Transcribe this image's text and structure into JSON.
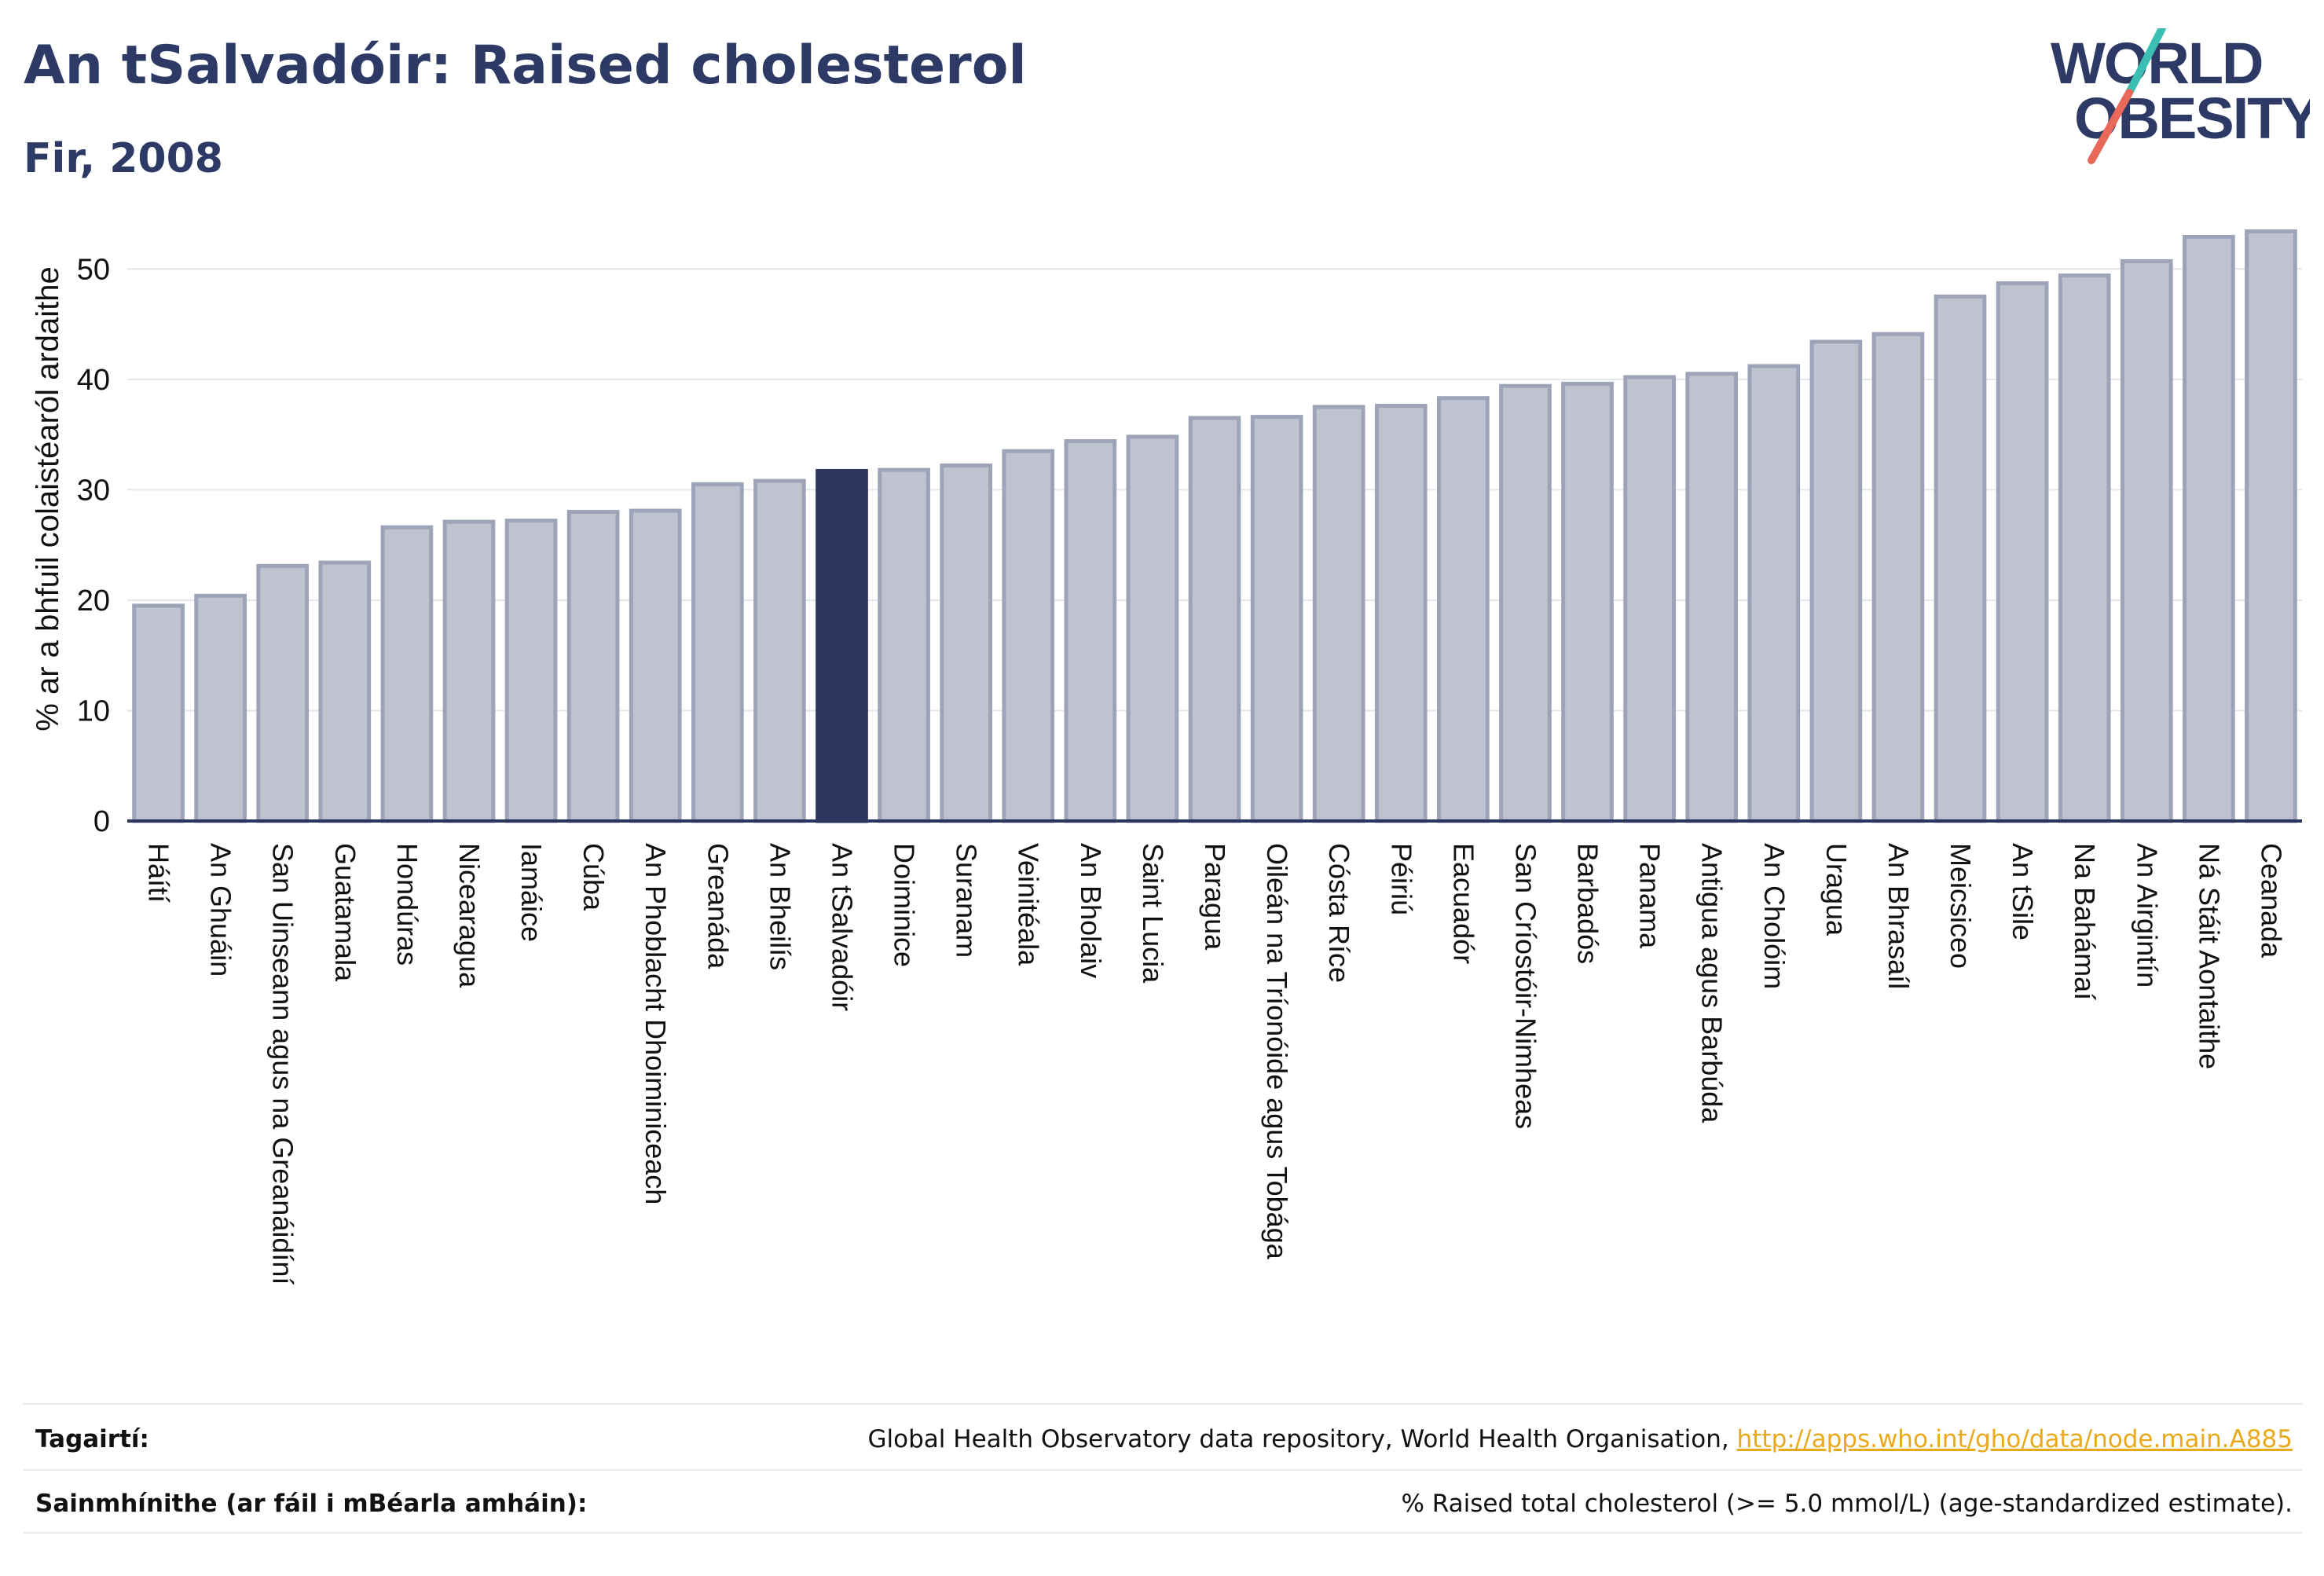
{
  "header": {
    "title": "An tSalvadóir: Raised cholesterol",
    "subtitle": "Fir, 2008",
    "logo_line1": "WORLD",
    "logo_line2": "OBESITY"
  },
  "colors": {
    "highlight": "#2b365e",
    "bar_fill": "#bfc3cf",
    "bar_stroke": "#9ea4b8",
    "text": "#2d3a66",
    "logo_teal": "#3bbfb3",
    "logo_coral": "#e8685a"
  },
  "chart_data": {
    "type": "bar",
    "title": "An tSalvadóir: Raised cholesterol",
    "subtitle": "Fir, 2008",
    "xlabel": "",
    "ylabel": "% ar a bhfuil colaistéaról ardaithe",
    "ylim": [
      0,
      55
    ],
    "yticks": [
      0,
      10,
      20,
      30,
      40,
      50
    ],
    "grid": true,
    "legend": "none",
    "highlight": "An tSalvadóir",
    "categories": [
      "Háítí",
      "An Ghuáin",
      "San Uinseann agus na Greanáidíní",
      "Guatamala",
      "Hondúras",
      "Nicearagua",
      "Iamáice",
      "Cúba",
      "An Phoblacht Dhoiminiceach",
      "Greanáda",
      "An Bheilís",
      "An tSalvadóir",
      "Doiminice",
      "Suranam",
      "Veinitéala",
      "An Bholaiv",
      "Saint Lucia",
      "Paragua",
      "Oileán na Tríonóide agus Tobága",
      "Cósta Ríce",
      "Péiriú",
      "Eacuadór",
      "San Críostóir-Nimheas",
      "Barbadós",
      "Panama",
      "Antigua agus Barbúda",
      "An Cholóim",
      "Uragua",
      "An Bhrasaíl",
      "Meicsiceo",
      "An tSile",
      "Na Bahámaí",
      "An Airgintín",
      "Ná Stáit Aontaithe",
      "Ceanada"
    ],
    "values": [
      19.5,
      20.4,
      23.1,
      23.4,
      26.6,
      27.1,
      27.2,
      28.0,
      28.1,
      30.5,
      30.8,
      31.7,
      31.8,
      32.2,
      33.5,
      34.4,
      34.8,
      36.5,
      36.6,
      37.5,
      37.6,
      38.3,
      39.4,
      39.6,
      40.2,
      40.5,
      41.2,
      43.4,
      44.1,
      47.5,
      48.7,
      49.4,
      50.7,
      52.9,
      53.4
    ]
  },
  "footer": {
    "references_label": "Tagairtí:",
    "references_text": "Global Health Observatory data repository, World Health Organisation, ",
    "references_link": "http://apps.who.int/gho/data/node.main.A885",
    "definitions_label": "Sainmhínithe (ar fáil i mBéarla amháin):",
    "definitions_text": "% Raised total cholesterol (>= 5.0 mmol/L) (age-standardized estimate)."
  }
}
